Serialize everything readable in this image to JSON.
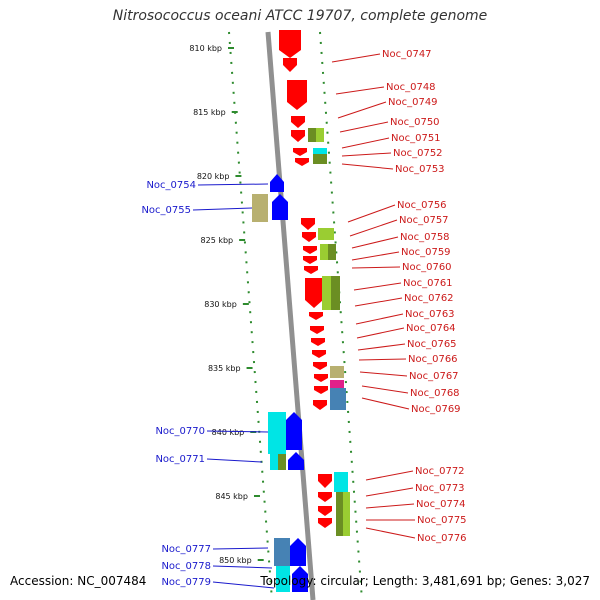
{
  "title": "Nitrosococcus oceani ATCC 19707, complete genome",
  "footer": {
    "accession": "Accession: NC_007484",
    "summary": "Topology: circular; Length: 3,481,691 bp; Genes: 3,027"
  },
  "scale_labels": [
    "810 kbp",
    "815 kbp",
    "820 kbp",
    "825 kbp",
    "830 kbp",
    "835 kbp",
    "840 kbp",
    "845 kbp",
    "850 kbp"
  ],
  "genes_left": [
    "Noc_0754",
    "Noc_0755",
    "Noc_0770",
    "Noc_0771",
    "Noc_0777",
    "Noc_0778",
    "Noc_0779"
  ],
  "genes_right": [
    "Noc_0747",
    "Noc_0748",
    "Noc_0749",
    "Noc_0750",
    "Noc_0751",
    "Noc_0752",
    "Noc_0753",
    "Noc_0756",
    "Noc_0757",
    "Noc_0758",
    "Noc_0759",
    "Noc_0760",
    "Noc_0761",
    "Noc_0762",
    "Noc_0763",
    "Noc_0764",
    "Noc_0765",
    "Noc_0766",
    "Noc_0767",
    "Noc_0768",
    "Noc_0769",
    "Noc_0772",
    "Noc_0773",
    "Noc_0774",
    "Noc_0775",
    "Noc_0776"
  ],
  "colors": {
    "forward_red": "#ff0000",
    "reverse_blue": "#0000ff",
    "cyan": "#00e5e5",
    "olive": "#6b8e23",
    "khaki": "#b8b070",
    "lime": "#9acd32",
    "steel": "#4682b4",
    "magenta": "#e0208a",
    "backbone": "#909090",
    "dots": "#2e8b2e"
  }
}
